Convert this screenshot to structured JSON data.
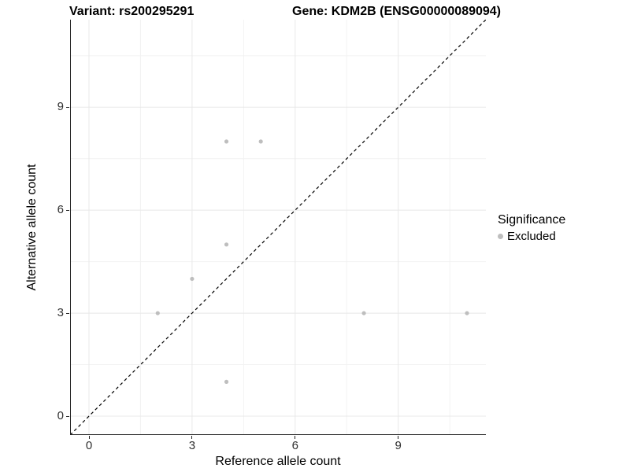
{
  "header": {
    "variant_title": "Variant: rs200295291",
    "gene_title": "Gene: KDM2B (ENSG00000089094)"
  },
  "chart_data": {
    "type": "scatter",
    "title": "Variant: rs200295291   Gene: KDM2B (ENSG00000089094)",
    "xlabel": "Reference allele count",
    "ylabel": "Alternative allele count",
    "xlim": [
      -0.55,
      11.55
    ],
    "ylim": [
      -0.55,
      11.55
    ],
    "x_ticks": [
      0,
      3,
      6,
      9
    ],
    "y_ticks": [
      0,
      3,
      6,
      9
    ],
    "x_minor_ticks": [
      1.5,
      4.5,
      7.5,
      10.5
    ],
    "y_minor_ticks": [
      1.5,
      4.5,
      7.5,
      10.5
    ],
    "grid": true,
    "legend_position": "right",
    "series": [
      {
        "name": "Excluded",
        "marker": "circle",
        "color": "#bebebe",
        "points": [
          [
            4,
            8
          ],
          [
            5,
            8
          ],
          [
            4,
            5
          ],
          [
            3,
            4
          ],
          [
            2,
            3
          ],
          [
            8,
            3
          ],
          [
            11,
            3
          ],
          [
            4,
            1
          ]
        ]
      }
    ],
    "reference_line": {
      "name": "identity-line",
      "equation": "y = x",
      "style": "dashed",
      "color": "#000000",
      "from": [
        -0.55,
        -0.55
      ],
      "to": [
        11.55,
        11.55
      ]
    }
  },
  "legend": {
    "title": "Significance",
    "entries": [
      {
        "label": "Excluded",
        "color": "#bebebe"
      }
    ]
  },
  "style": {
    "point_color": "#bebebe",
    "point_radius": 2.6,
    "grid_major_color": "#e8e8e8",
    "grid_minor_color": "#f2f2f2",
    "axis_line_color": "#262626",
    "tick_label_color": "#303030",
    "background": "#ffffff"
  }
}
